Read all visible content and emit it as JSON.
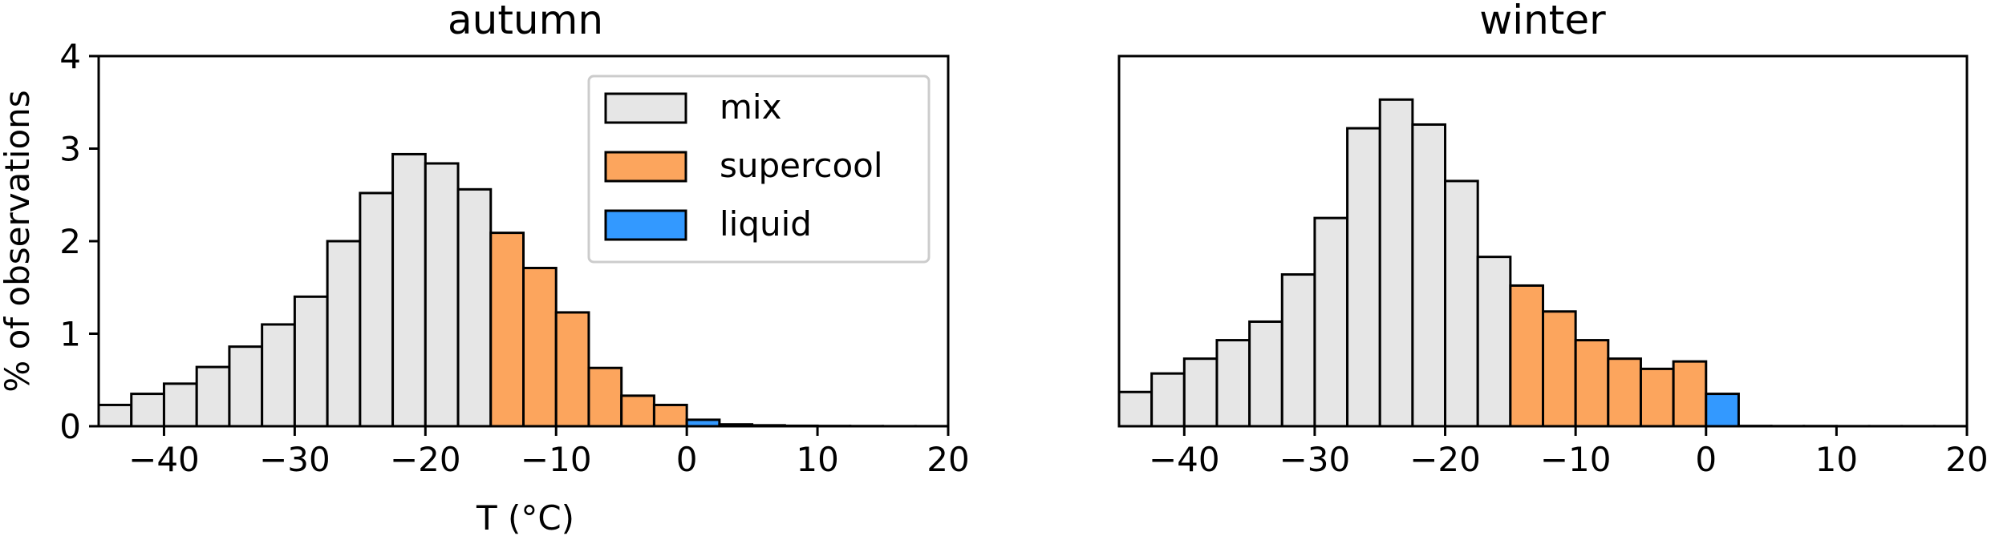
{
  "chart_data": [
    {
      "type": "bar",
      "title": "autumn",
      "xlabel": "T (°C)",
      "ylabel": "% of observations",
      "xlim": [
        -45,
        20
      ],
      "ylim": [
        0,
        4
      ],
      "xticks": [
        -40,
        -30,
        -20,
        -10,
        0,
        10,
        20
      ],
      "xtick_labels": [
        "−40",
        "−30",
        "−20",
        "−10",
        "0",
        "10",
        "20"
      ],
      "yticks": [
        0,
        1,
        2,
        3,
        4
      ],
      "ytick_labels": [
        "0",
        "1",
        "2",
        "3",
        "4"
      ],
      "bin_width": 2.5,
      "legend": {
        "placement": "top-right",
        "entries": [
          "mix",
          "supercool",
          "liquid"
        ]
      },
      "series": [
        {
          "name": "mix",
          "color": "#e6e6e6",
          "bins": [
            [
              -45,
              0.23
            ],
            [
              -42.5,
              0.35
            ],
            [
              -40,
              0.46
            ],
            [
              -37.5,
              0.64
            ],
            [
              -35,
              0.86
            ],
            [
              -32.5,
              1.1
            ],
            [
              -30,
              1.4
            ],
            [
              -27.5,
              2.0
            ],
            [
              -25,
              2.52
            ],
            [
              -22.5,
              2.94
            ],
            [
              -20,
              2.84
            ],
            [
              -17.5,
              2.56
            ]
          ]
        },
        {
          "name": "supercool",
          "color": "#fca55d",
          "bins": [
            [
              -15,
              2.09
            ],
            [
              -12.5,
              1.71
            ],
            [
              -10,
              1.23
            ],
            [
              -7.5,
              0.63
            ],
            [
              -5,
              0.33
            ],
            [
              -2.5,
              0.23
            ]
          ]
        },
        {
          "name": "liquid",
          "color": "#3399ff",
          "bins": [
            [
              0,
              0.07
            ],
            [
              2.5,
              0.02
            ],
            [
              5,
              0.01
            ],
            [
              7.5,
              0.005
            ],
            [
              10,
              0.003
            ],
            [
              12.5,
              0.002
            ],
            [
              15,
              0.001
            ],
            [
              17.5,
              0.001
            ]
          ]
        }
      ]
    },
    {
      "type": "bar",
      "title": "winter",
      "xlabel": "",
      "ylabel": "",
      "xlim": [
        -45,
        20
      ],
      "ylim": [
        0,
        4
      ],
      "xticks": [
        -40,
        -30,
        -20,
        -10,
        0,
        10,
        20
      ],
      "xtick_labels": [
        "−40",
        "−30",
        "−20",
        "−10",
        "0",
        "10",
        "20"
      ],
      "yticks": [],
      "ytick_labels": [],
      "bin_width": 2.5,
      "series": [
        {
          "name": "mix",
          "color": "#e6e6e6",
          "bins": [
            [
              -45,
              0.37
            ],
            [
              -42.5,
              0.57
            ],
            [
              -40,
              0.73
            ],
            [
              -37.5,
              0.93
            ],
            [
              -35,
              1.13
            ],
            [
              -32.5,
              1.64
            ],
            [
              -30,
              2.25
            ],
            [
              -27.5,
              3.22
            ],
            [
              -25,
              3.53
            ],
            [
              -22.5,
              3.26
            ],
            [
              -20,
              2.65
            ],
            [
              -17.5,
              1.83
            ]
          ]
        },
        {
          "name": "supercool",
          "color": "#fca55d",
          "bins": [
            [
              -15,
              1.52
            ],
            [
              -12.5,
              1.24
            ],
            [
              -10,
              0.93
            ],
            [
              -7.5,
              0.73
            ],
            [
              -5,
              0.62
            ],
            [
              -2.5,
              0.7
            ]
          ]
        },
        {
          "name": "liquid",
          "color": "#3399ff",
          "bins": [
            [
              0,
              0.35
            ],
            [
              2.5,
              0.003
            ],
            [
              5,
              0.002
            ],
            [
              7.5,
              0.002
            ],
            [
              10,
              0.001
            ],
            [
              12.5,
              0.001
            ],
            [
              15,
              0.001
            ],
            [
              17.5,
              0.001
            ]
          ]
        }
      ]
    }
  ]
}
